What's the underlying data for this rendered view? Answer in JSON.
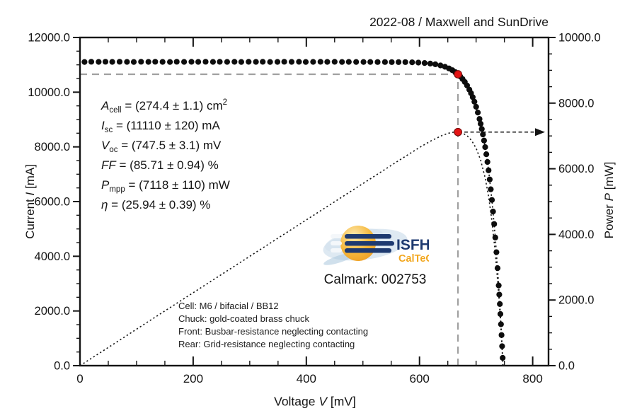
{
  "chart_data": {
    "type": "scatter",
    "title": "2022-08 / Maxwell and SunDrive",
    "grid": false,
    "legend": "none",
    "axes": {
      "x": {
        "label_pre": "Voltage ",
        "label_var": "V",
        "label_post": " [mV]",
        "min": 0,
        "max": 828,
        "major": [
          0,
          200,
          400,
          600,
          800
        ],
        "minor_step": 50,
        "tick_labels": [
          "0",
          "200",
          "400",
          "600",
          "800"
        ]
      },
      "left": {
        "label_pre": "Current ",
        "label_var": "I",
        "label_post": " [mA]",
        "min": 0,
        "max": 12000,
        "major": [
          0,
          2000,
          4000,
          6000,
          8000,
          10000,
          12000
        ],
        "minor_step": 500,
        "tick_labels": [
          "0.0",
          "2000.0",
          "4000.0",
          "6000.0",
          "8000.0",
          "10000.0",
          "12000.0"
        ]
      },
      "right": {
        "label_pre": "Power ",
        "label_var": "P",
        "label_post": " [mW]",
        "min": 0,
        "max": 10000,
        "major": [
          0,
          2000,
          4000,
          6000,
          8000,
          10000
        ],
        "minor_step": 500,
        "tick_labels": [
          "0.0",
          "2000.0",
          "4000.0",
          "6000.0",
          "8000.0",
          "10000.0"
        ]
      }
    },
    "mpp": {
      "v_mv": 668,
      "i_ma": 10655,
      "p_mw": 7118
    },
    "series": [
      {
        "name": "iv-curve-fit",
        "axis": "left",
        "style": "dotted-line",
        "points": [
          [
            650,
            10889
          ],
          [
            656,
            10829
          ],
          [
            662,
            10752
          ],
          [
            668,
            10655
          ],
          [
            674,
            10531
          ],
          [
            680,
            10373
          ],
          [
            686,
            10172
          ],
          [
            692,
            9917
          ],
          [
            698,
            9592
          ],
          [
            704,
            9179
          ],
          [
            710,
            8653
          ],
          [
            716,
            7991
          ],
          [
            722,
            7142
          ],
          [
            728,
            6059
          ],
          [
            734,
            4685
          ],
          [
            740,
            2934
          ],
          [
            744,
            1512
          ],
          [
            746,
            710
          ],
          [
            747.5,
            0
          ]
        ]
      },
      {
        "name": "power-curve",
        "axis": "right",
        "style": "dotted-line",
        "points": [
          [
            0,
            0
          ],
          [
            40,
            444
          ],
          [
            80,
            889
          ],
          [
            120,
            1333
          ],
          [
            160,
            1777
          ],
          [
            200,
            2222
          ],
          [
            240,
            2666
          ],
          [
            280,
            3110
          ],
          [
            320,
            3553
          ],
          [
            360,
            3997
          ],
          [
            400,
            4441
          ],
          [
            440,
            4884
          ],
          [
            480,
            5327
          ],
          [
            520,
            5770
          ],
          [
            560,
            6213
          ],
          [
            600,
            6648
          ],
          [
            620,
            6847
          ],
          [
            640,
            7016
          ],
          [
            650,
            7078
          ],
          [
            660,
            7115
          ],
          [
            668,
            7118
          ],
          [
            676,
            7086
          ],
          [
            684,
            7008
          ],
          [
            692,
            6863
          ],
          [
            700,
            6626
          ],
          [
            708,
            6262
          ],
          [
            716,
            5722
          ],
          [
            722,
            5157
          ],
          [
            728,
            4411
          ],
          [
            734,
            3439
          ],
          [
            740,
            2171
          ],
          [
            744,
            1125
          ],
          [
            747.5,
            0
          ]
        ]
      },
      {
        "name": "iv-measured-points",
        "axis": "left",
        "style": "dots",
        "points": [
          [
            8,
            11105
          ],
          [
            20,
            11112
          ],
          [
            33,
            11107
          ],
          [
            45,
            11113
          ],
          [
            57,
            11108
          ],
          [
            70,
            11114
          ],
          [
            83,
            11109
          ],
          [
            95,
            11106
          ],
          [
            108,
            11112
          ],
          [
            121,
            11108
          ],
          [
            133,
            11113
          ],
          [
            146,
            11109
          ],
          [
            159,
            11106
          ],
          [
            171,
            11112
          ],
          [
            184,
            11108
          ],
          [
            197,
            11111
          ],
          [
            209,
            11107
          ],
          [
            222,
            11113
          ],
          [
            235,
            11109
          ],
          [
            247,
            11111
          ],
          [
            260,
            11107
          ],
          [
            273,
            11110
          ],
          [
            285,
            11106
          ],
          [
            298,
            11111
          ],
          [
            311,
            11107
          ],
          [
            323,
            11110
          ],
          [
            336,
            11106
          ],
          [
            349,
            11109
          ],
          [
            361,
            11112
          ],
          [
            374,
            11108
          ],
          [
            387,
            11110
          ],
          [
            399,
            11106
          ],
          [
            412,
            11109
          ],
          [
            425,
            11111
          ],
          [
            437,
            11107
          ],
          [
            450,
            11110
          ],
          [
            463,
            11106
          ],
          [
            475,
            11108
          ],
          [
            488,
            11106
          ],
          [
            501,
            11105
          ],
          [
            513,
            11104
          ],
          [
            526,
            11103
          ],
          [
            539,
            11102
          ],
          [
            551,
            11101
          ],
          [
            563,
            11100
          ],
          [
            575,
            11099
          ],
          [
            587,
            11092
          ],
          [
            598,
            11083
          ],
          [
            609,
            11067
          ],
          [
            619,
            11046
          ],
          [
            628,
            11019
          ],
          [
            637,
            10979
          ],
          [
            645,
            10930
          ],
          [
            652,
            10871
          ],
          [
            658,
            10806
          ],
          [
            663,
            10738
          ],
          [
            668,
            10655
          ],
          [
            672,
            10576
          ],
          [
            676,
            10483
          ],
          [
            680,
            10373
          ],
          [
            684,
            10245
          ],
          [
            688,
            10094
          ],
          [
            691,
            9964
          ],
          [
            694,
            9816
          ],
          [
            697,
            9651
          ],
          [
            700,
            9466
          ],
          [
            703,
            9256
          ],
          [
            706,
            9020
          ],
          [
            708,
            8844
          ],
          [
            710,
            8653
          ],
          [
            712,
            8454
          ],
          [
            714,
            8232
          ],
          [
            716,
            7991
          ],
          [
            718,
            7731
          ],
          [
            720,
            7448
          ],
          [
            722,
            7142
          ],
          [
            724,
            6810
          ],
          [
            726,
            6451
          ],
          [
            728,
            6059
          ],
          [
            730,
            5636
          ],
          [
            732,
            5181
          ],
          [
            734,
            4685
          ],
          [
            736,
            4148
          ],
          [
            738,
            3566
          ],
          [
            740,
            2934
          ],
          [
            741,
            2600
          ],
          [
            742,
            2252
          ],
          [
            743,
            1889
          ],
          [
            744,
            1512
          ],
          [
            745,
            1119
          ],
          [
            746,
            710
          ],
          [
            747,
            284
          ]
        ]
      }
    ]
  },
  "colors": {
    "mpp_red": "#e41414",
    "guide_gray": "#a0a0a0",
    "ink": "#141414",
    "logo_navy": "#1e3a70",
    "logo_orange": "#f2a71f",
    "logo_lightblue": "#b5cfe2"
  },
  "annotation": {
    "lines": [
      {
        "var": "A",
        "sub": "cell",
        "eq": " = (274.4 ± 1.1) cm",
        "sup": "2"
      },
      {
        "var": "I",
        "sub": "sc",
        "eq": " = (11110 ± 120) mA",
        "sup": ""
      },
      {
        "var": "V",
        "sub": "oc",
        "eq": " = (747.5 ± 3.1) mV",
        "sup": ""
      },
      {
        "var": "FF",
        "sub": "",
        "eq": " = (85.71 ± 0.94) %",
        "sup": ""
      },
      {
        "var": "P",
        "sub": "mpp",
        "eq": " = (7118 ± 110) mW",
        "sup": ""
      },
      {
        "var": "η",
        "sub": "",
        "eq": " = (25.94 ± 0.39) %",
        "sup": ""
      }
    ]
  },
  "logo": {
    "name": "ISFH",
    "sub": "CalTeC"
  },
  "calmark": "Calmark: 002753",
  "cell_info": {
    "lines": [
      "Cell: M6 / bifacial / BB12",
      "Chuck: gold-coated brass chuck",
      "Front: Busbar-resistance neglecting contacting",
      "Rear: Grid-resistance neglecting contacting"
    ]
  }
}
